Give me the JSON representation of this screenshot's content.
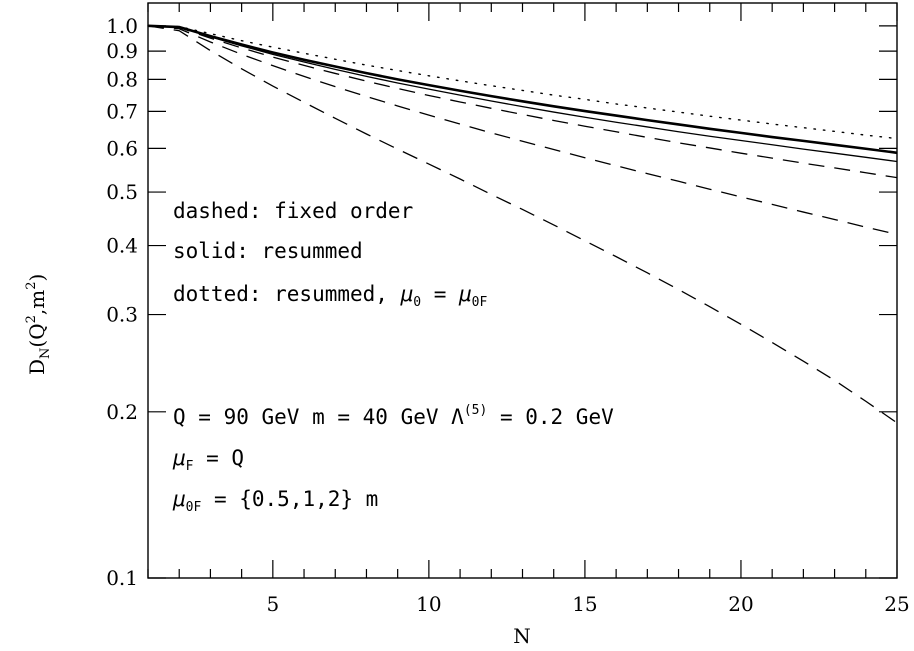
{
  "chart_data": {
    "type": "line",
    "xlabel": "N",
    "ylabel": "D",
    "ylabel_sub": "N",
    "ylabel_args": "(Q",
    "ylabel_args2": ",m",
    "ylabel_args3": ")",
    "ylabel_sup": "2",
    "xlim": [
      1,
      25
    ],
    "ylim": [
      0.1,
      1.1
    ],
    "yscale": "log",
    "grid": false,
    "x_ticks": [
      5,
      10,
      15,
      20,
      25
    ],
    "y_ticks": [
      {
        "value": 1.0,
        "label": "1.0"
      },
      {
        "value": 0.9,
        "label": "0.9"
      },
      {
        "value": 0.8,
        "label": "0.8"
      },
      {
        "value": 0.7,
        "label": "0.7"
      },
      {
        "value": 0.6,
        "label": "0.6"
      },
      {
        "value": 0.5,
        "label": "0.5"
      },
      {
        "value": 0.4,
        "label": "0.4"
      },
      {
        "value": 0.3,
        "label": "0.3"
      },
      {
        "value": 0.2,
        "label": "0.2"
      },
      {
        "value": 0.1,
        "label": "0.1"
      }
    ],
    "annotations": {
      "dashed": "dashed: fixed order",
      "solid": "solid: resummed",
      "dotted_prefix": "dotted: resummed, ",
      "dotted_mu": "μ",
      "dotted_mu_sub": "0",
      "dotted_eq": " = ",
      "dotted_mu2_sub": "0F",
      "params_q": "Q = 90 GeV  m = 40 GeV  ",
      "params_lambda": "Λ",
      "params_lambda_sup": "(5)",
      "params_lambda_val": " = 0.2 GeV",
      "muf_mu": "μ",
      "muf_sub": "F",
      "muf_rest": " = Q",
      "mu0f_mu": "μ",
      "mu0f_sub": "0F",
      "mu0f_rest": " = {0.5,1,2} m"
    },
    "series": [
      {
        "style": "solid",
        "width": 2.6,
        "x": [
          1,
          2,
          3,
          4,
          5,
          6,
          7,
          8,
          9,
          10,
          11,
          12,
          13,
          14,
          15,
          16,
          17,
          18,
          19,
          20,
          21,
          22,
          23,
          24,
          25
        ],
        "y": [
          1.0,
          0.995,
          0.958,
          0.925,
          0.895,
          0.868,
          0.844,
          0.821,
          0.8,
          0.781,
          0.763,
          0.746,
          0.73,
          0.715,
          0.701,
          0.688,
          0.675,
          0.663,
          0.651,
          0.64,
          0.629,
          0.619,
          0.609,
          0.599,
          0.589
        ]
      },
      {
        "style": "solid",
        "width": 1.3,
        "x": [
          1,
          2,
          3,
          4,
          5,
          6,
          7,
          8,
          9,
          10,
          11,
          12,
          13,
          14,
          15,
          16,
          17,
          18,
          19,
          20,
          21,
          22,
          23,
          24,
          25
        ],
        "y": [
          1.0,
          0.995,
          0.955,
          0.92,
          0.888,
          0.86,
          0.834,
          0.81,
          0.788,
          0.768,
          0.749,
          0.731,
          0.714,
          0.698,
          0.683,
          0.669,
          0.656,
          0.643,
          0.631,
          0.62,
          0.609,
          0.598,
          0.588,
          0.578,
          0.568
        ]
      },
      {
        "style": "dotted",
        "width": 1.4,
        "x": [
          1,
          2,
          3,
          4,
          5,
          6,
          7,
          8,
          9,
          10,
          11,
          12,
          13,
          14,
          15,
          16,
          17,
          18,
          19,
          20,
          21,
          22,
          23,
          24,
          25
        ],
        "y": [
          1.0,
          0.997,
          0.968,
          0.94,
          0.915,
          0.892,
          0.87,
          0.849,
          0.83,
          0.812,
          0.795,
          0.779,
          0.764,
          0.749,
          0.736,
          0.722,
          0.71,
          0.698,
          0.686,
          0.675,
          0.664,
          0.654,
          0.644,
          0.634,
          0.625
        ]
      },
      {
        "style": "dashed",
        "width": 1.3,
        "x": [
          1,
          2,
          3,
          4,
          5,
          6,
          7,
          8,
          9,
          10,
          11,
          12,
          13,
          14,
          15,
          16,
          17,
          18,
          19,
          20,
          21,
          22,
          23,
          24,
          25
        ],
        "y": [
          1.0,
          0.993,
          0.95,
          0.912,
          0.878,
          0.848,
          0.82,
          0.794,
          0.77,
          0.748,
          0.728,
          0.709,
          0.691,
          0.674,
          0.658,
          0.643,
          0.628,
          0.614,
          0.601,
          0.588,
          0.576,
          0.564,
          0.553,
          0.542,
          0.531
        ]
      },
      {
        "style": "dashed",
        "width": 1.3,
        "x": [
          1,
          2,
          3,
          4,
          5,
          6,
          7,
          8,
          9,
          10,
          11,
          12,
          13,
          14,
          15,
          16,
          17,
          18,
          19,
          20,
          21,
          22,
          23,
          24,
          25
        ],
        "y": [
          1.0,
          0.988,
          0.935,
          0.888,
          0.847,
          0.81,
          0.776,
          0.745,
          0.716,
          0.689,
          0.664,
          0.64,
          0.618,
          0.597,
          0.577,
          0.558,
          0.54,
          0.523,
          0.506,
          0.49,
          0.475,
          0.46,
          0.446,
          0.432,
          0.419
        ]
      },
      {
        "style": "dashed",
        "width": 1.3,
        "x": [
          1,
          2,
          3,
          4,
          5,
          6,
          7,
          8,
          9,
          10,
          11,
          12,
          13,
          14,
          15,
          16,
          17,
          18,
          19,
          20,
          21,
          22,
          23,
          24,
          25
        ],
        "y": [
          1.0,
          0.98,
          0.902,
          0.836,
          0.778,
          0.727,
          0.68,
          0.637,
          0.598,
          0.562,
          0.528,
          0.495,
          0.465,
          0.436,
          0.408,
          0.382,
          0.357,
          0.333,
          0.31,
          0.288,
          0.267,
          0.247,
          0.228,
          0.209,
          0.191
        ]
      }
    ]
  }
}
